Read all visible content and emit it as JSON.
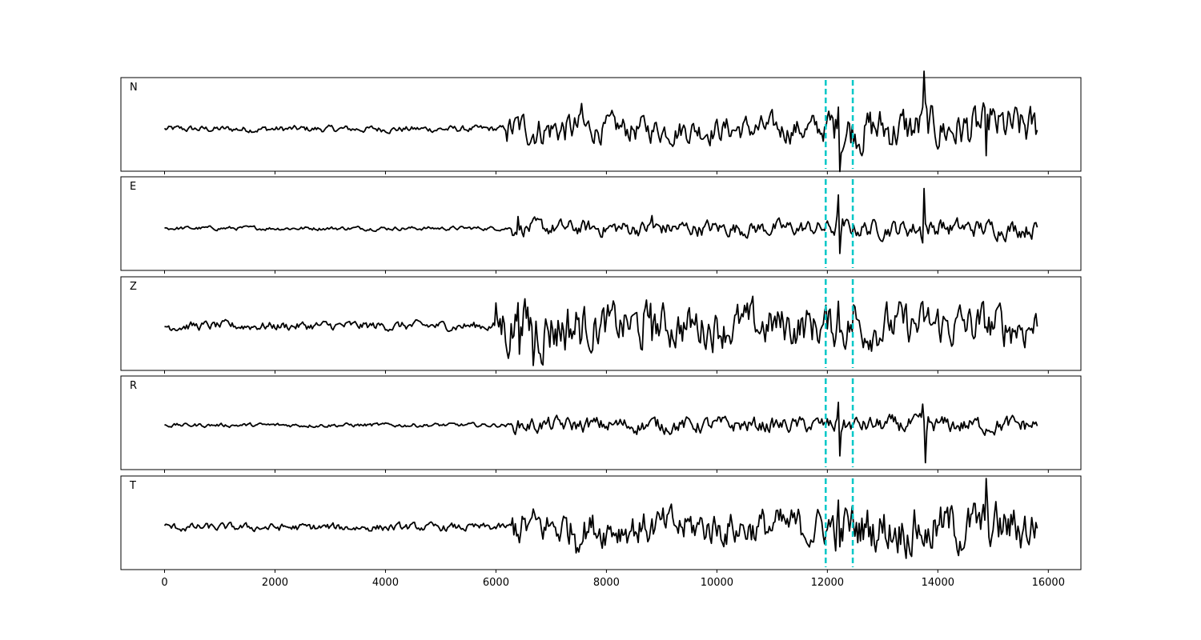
{
  "chart_data": {
    "type": "line",
    "title": "",
    "xlabel": "",
    "ylabel": "",
    "xlim": [
      -790,
      16590
    ],
    "ylim": [
      -1,
      1
    ],
    "x_range_of_data": [
      0,
      15800
    ],
    "x_ticks": [
      0,
      2000,
      4000,
      6000,
      8000,
      10000,
      12000,
      14000,
      16000
    ],
    "x_tick_labels": [
      "0",
      "2000",
      "4000",
      "6000",
      "8000",
      "10000",
      "12000",
      "14000",
      "16000"
    ],
    "grid": false,
    "trace_color": "#000000",
    "marker_color": "#00c8c8",
    "markers": [
      11970,
      12460
    ],
    "panels": [
      {
        "label": "N",
        "baseline": -0.1,
        "envelope": [
          [
            0,
            6200,
            0.05
          ],
          [
            6200,
            7600,
            0.25
          ],
          [
            7600,
            12000,
            0.2
          ],
          [
            12000,
            15800,
            0.33
          ]
        ],
        "peaks": [
          [
            7550,
            0.4
          ],
          [
            12200,
            0.95
          ],
          [
            12230,
            -0.75
          ],
          [
            13750,
            0.95
          ],
          [
            13700,
            0.35
          ],
          [
            14870,
            -0.65
          ],
          [
            14950,
            0.35
          ]
        ]
      },
      {
        "label": "E",
        "baseline": -0.1,
        "envelope": [
          [
            0,
            6300,
            0.03
          ],
          [
            6300,
            12000,
            0.12
          ],
          [
            12000,
            15800,
            0.14
          ]
        ],
        "peaks": [
          [
            6400,
            0.25
          ],
          [
            8820,
            0.25
          ],
          [
            12200,
            0.8
          ],
          [
            12230,
            -0.7
          ],
          [
            13750,
            0.95
          ],
          [
            13720,
            -0.3
          ],
          [
            14050,
            0.3
          ]
        ]
      },
      {
        "label": "Z",
        "baseline": -0.05,
        "envelope": [
          [
            0,
            6000,
            0.07
          ],
          [
            6000,
            7600,
            0.45
          ],
          [
            7600,
            15800,
            0.33
          ]
        ],
        "peaks": [
          [
            6400,
            0.9
          ],
          [
            6680,
            -0.8
          ],
          [
            8800,
            0.55
          ],
          [
            8650,
            -0.5
          ],
          [
            12200,
            0.45
          ],
          [
            12480,
            0.4
          ]
        ]
      },
      {
        "label": "R",
        "baseline": -0.05,
        "envelope": [
          [
            0,
            6300,
            0.03
          ],
          [
            6300,
            12000,
            0.12
          ],
          [
            12000,
            15800,
            0.13
          ]
        ],
        "peaks": [
          [
            12200,
            0.7
          ],
          [
            12220,
            -0.7
          ],
          [
            13730,
            0.3
          ],
          [
            13780,
            -0.9
          ]
        ]
      },
      {
        "label": "T",
        "baseline": -0.1,
        "envelope": [
          [
            0,
            6300,
            0.06
          ],
          [
            6300,
            12000,
            0.28
          ],
          [
            12000,
            15800,
            0.38
          ]
        ],
        "peaks": [
          [
            7450,
            -0.35
          ],
          [
            12200,
            0.55
          ],
          [
            12220,
            -1.0
          ],
          [
            13800,
            -0.6
          ],
          [
            14880,
            0.65
          ]
        ]
      }
    ]
  }
}
